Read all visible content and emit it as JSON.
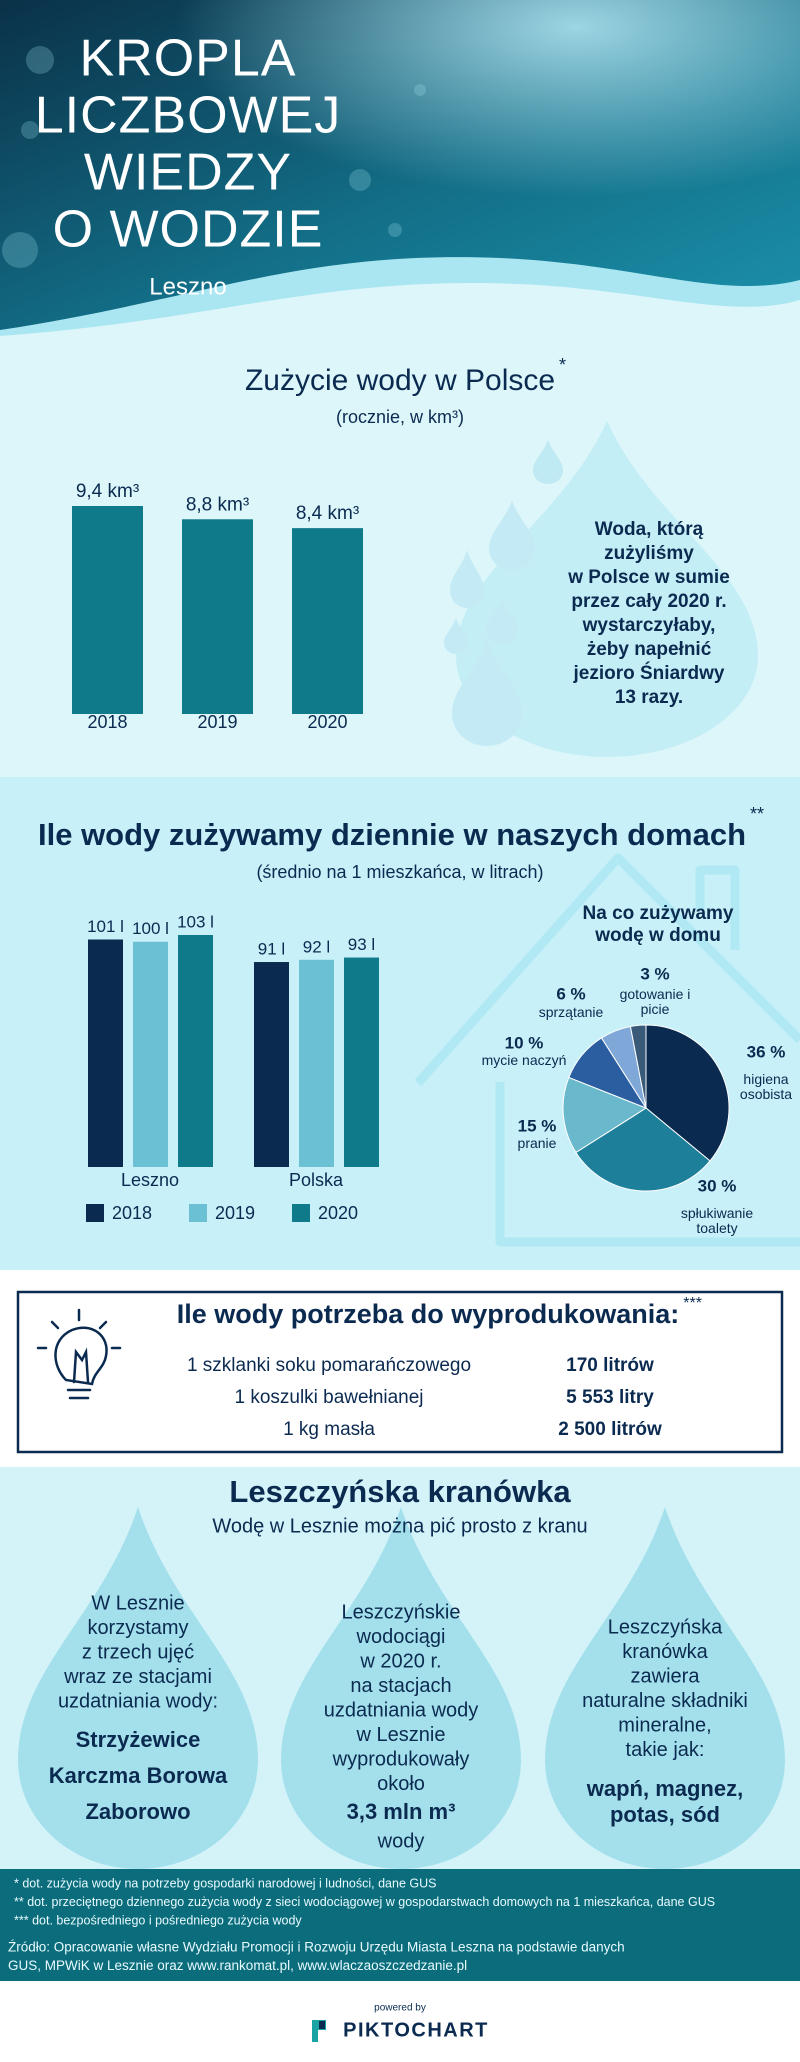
{
  "header": {
    "title_lines": [
      "KROPLA",
      "LICZBOWEJ",
      "WIEDZY",
      "O WODZIE"
    ],
    "subtitle": "Leszno"
  },
  "chart_data": [
    {
      "type": "bar",
      "title": "Zużycie wody w Polsce",
      "title_marker": "*",
      "subtitle": "(rocznie, w km³)",
      "categories": [
        "2018",
        "2019",
        "2020"
      ],
      "values": [
        9.4,
        8.8,
        8.4
      ],
      "value_labels": [
        "9,4 km³",
        "8,8 km³",
        "8,4 km³"
      ],
      "color": "#0e7a8a"
    },
    {
      "type": "grouped-bar",
      "title": "Ile wody zużywamy dziennie w naszych domach",
      "title_marker": "**",
      "subtitle": "(średnio na 1 mieszkańca, w litrach)",
      "categories": [
        "Leszno",
        "Polska"
      ],
      "series": [
        {
          "name": "2018",
          "color": "#0b2a50",
          "values": [
            101,
            91
          ],
          "value_labels": [
            "101 l",
            "91 l"
          ]
        },
        {
          "name": "2019",
          "color": "#6cc0d4",
          "values": [
            100,
            92
          ],
          "value_labels": [
            "100 l",
            "92 l"
          ]
        },
        {
          "name": "2020",
          "color": "#0e7a8a",
          "values": [
            103,
            93
          ],
          "value_labels": [
            "103 l",
            "93 l"
          ]
        }
      ]
    },
    {
      "type": "pie",
      "title": "Na co zużywamy wodę w domu",
      "categories": [
        "higiena osobista",
        "spłukiwanie toalety",
        "pranie",
        "mycie naczyń",
        "sprzątanie",
        "gotowanie i picie"
      ],
      "values": [
        36,
        30,
        15,
        10,
        6,
        3
      ],
      "value_labels": [
        "36 %",
        "30 %",
        "15 %",
        "10 %",
        "6 %",
        "3 %"
      ],
      "colors": [
        "#0b2a50",
        "#1e7f9a",
        "#6ab8cc",
        "#2b5ea0",
        "#7fa8d8",
        "#3a5a7a"
      ]
    }
  ],
  "drop_fact": {
    "lines": [
      "Woda, którą",
      "zużyliśmy",
      "w Polsce w sumie",
      "przez cały 2020 r.",
      "wystarczyłaby,",
      "żeby napełnić",
      "jezioro Śniardwy",
      "13 razy."
    ]
  },
  "production": {
    "title": "Ile wody potrzeba do wyprodukowania:",
    "title_marker": "***",
    "rows": [
      [
        "1 szklanki soku pomarańczowego",
        "170 litrów"
      ],
      [
        "1 koszulki bawełnianej",
        "5 553 litry"
      ],
      [
        "1 kg masła",
        "2 500 litrów"
      ]
    ]
  },
  "tap_water": {
    "title": "Leszczyńska kranówka",
    "subtitle": "Wodę w Lesznie można pić prosto z kranu",
    "drops": [
      {
        "lines": [
          "W Lesznie",
          "korzystamy",
          "z trzech ujęć",
          "wraz ze stacjami",
          "uzdatniania wody:"
        ],
        "bold": [
          "Strzyżewice",
          "Karczma Borowa",
          "Zaborowo"
        ],
        "after": []
      },
      {
        "lines": [
          "Leszczyńskie",
          "wodociągi",
          "w 2020 r.",
          "na stacjach",
          "uzdatniania wody",
          "w Lesznie",
          "wyprodukowały",
          "około"
        ],
        "bold": [
          "3,3 mln m³"
        ],
        "after": [
          "wody"
        ]
      },
      {
        "lines": [
          "Leszczyńska",
          "kranówka",
          "zawiera",
          "naturalne składniki",
          "mineralne,",
          "takie jak:"
        ],
        "bold": [
          "wapń, magnez,",
          "potas, sód"
        ],
        "after": []
      }
    ]
  },
  "footnotes": [
    "* dot. zużycia wody na potrzeby gospodarki narodowej i ludności, dane GUS",
    "** dot. przeciętnego dziennego zużycia wody z sieci wodociągowej w gospodarstwach domowych na 1 mieszkańca, dane GUS",
    "*** dot. bezpośredniego i pośredniego zużycia wody"
  ],
  "source": [
    "Źródło: Opracowanie własne Wydziału Promocji i Rozwoju Urzędu Miasta Leszna na podstawie danych",
    "GUS, MPWiK w Lesznie oraz www.rankomat.pl, www.wlaczaoszczedzanie.pl"
  ],
  "footer": {
    "powered_by": "powered by",
    "brand": "PIKTOCHART"
  }
}
